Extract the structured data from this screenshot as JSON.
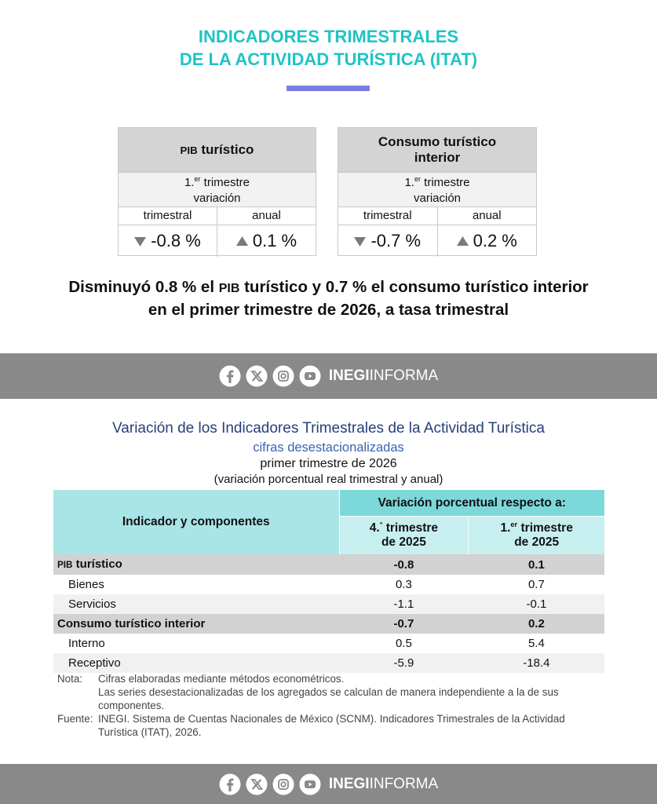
{
  "header": {
    "title": [
      "INDICADORES TRIMESTRALES",
      "DE LA ACTIVIDAD TURÍSTICA (ITAT)"
    ]
  },
  "cards": [
    {
      "title": {
        "abbr": "PIB",
        "text": "turístico"
      },
      "period": {
        "ordinal": "1.",
        "sup": "er",
        "label": "trimestre",
        "line2": "variación"
      },
      "columns": [
        "trimestral",
        "anual"
      ],
      "values": [
        "-0.8 %",
        "0.1 %"
      ]
    },
    {
      "title": {
        "text": "Consumo turístico interior"
      },
      "period": {
        "ordinal": "1.",
        "sup": "er",
        "label": "trimestre",
        "line2": "variación"
      },
      "columns": [
        "trimestral",
        "anual"
      ],
      "values": [
        "-0.7 %",
        "0.2 %"
      ]
    }
  ],
  "headline": {
    "line1": {
      "before": "Disminuyó 0.8 % el",
      "abbr": "PIB",
      "after": "turístico y 0.7 % el consumo turístico interior"
    },
    "line2": "en el primer trimestre de 2026, a tasa trimestral"
  },
  "social": {
    "brand_bold": "INEGI",
    "brand": "INFORMA"
  },
  "table_title": {
    "title": "Variación de los Indicadores Trimestrales de la Actividad Turística",
    "subtitle": "cifras desestacionalizadas",
    "period": "primer trimestre de 2026",
    "note": "(variación porcentual real trimestral y anual)"
  },
  "table": {
    "header": {
      "label": "Indicador y componentes",
      "group": "Variación porcentual respecto a:",
      "columns": [
        {
          "ordinal": "4.",
          "sup": "°",
          "label": "trimestre",
          "year": "de 2025"
        },
        {
          "ordinal": "1.",
          "sup": "er",
          "label": "trimestre",
          "year": "de 2025"
        }
      ]
    },
    "rows": [
      {
        "abbr": "PIB",
        "label": "turístico",
        "values": [
          -0.8,
          0.1
        ]
      },
      {
        "label": "Bienes",
        "values": [
          0.3,
          0.7
        ]
      },
      {
        "label": "Servicios",
        "values": [
          -1.1,
          -0.1
        ]
      },
      {
        "label": "Consumo turístico interior",
        "values": [
          -0.7,
          0.2
        ]
      },
      {
        "label": "Interno",
        "values": [
          0.5,
          5.4
        ]
      },
      {
        "label": "Receptivo",
        "values": [
          -5.9,
          -18.4
        ]
      }
    ]
  },
  "notes": {
    "nota_label": "Nota:",
    "nota": [
      "Cifras elaboradas mediante métodos econométricos.",
      "Las series desestacionalizadas de los agregados se calculan de manera independiente a la de sus componentes."
    ],
    "fuente_label": "Fuente:",
    "fuente": "INEGI. Sistema de Cuentas Nacionales de México (SCNM). Indicadores Trimestrales de la Actividad Turística (ITAT), 2026."
  }
}
